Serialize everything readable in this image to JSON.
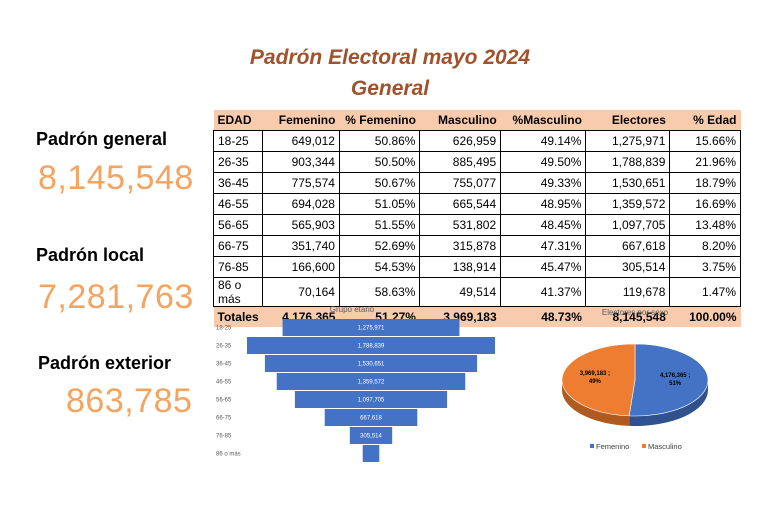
{
  "title_line1": "Padrón Electoral mayo 2024",
  "title_line2": "General",
  "stats": {
    "general_label": "Padrón general",
    "general_value": "8,145,548",
    "local_label": "Padrón local",
    "local_value": "7,281,763",
    "exterior_label": "Padrón exterior",
    "exterior_value": "863,785"
  },
  "table": {
    "headers": [
      "EDAD",
      "Femenino",
      "% Femenino",
      "Masculino",
      "%Masculino",
      "Electores",
      "% Edad"
    ],
    "rows": [
      [
        "18-25",
        "649,012",
        "50.86%",
        "626,959",
        "49.14%",
        "1,275,971",
        "15.66%"
      ],
      [
        "26-35",
        "903,344",
        "50.50%",
        "885,495",
        "49.50%",
        "1,788,839",
        "21.96%"
      ],
      [
        "36-45",
        "775,574",
        "50.67%",
        "755,077",
        "49.33%",
        "1,530,651",
        "18.79%"
      ],
      [
        "46-55",
        "694,028",
        "51.05%",
        "665,544",
        "48.95%",
        "1,359,572",
        "16.69%"
      ],
      [
        "56-65",
        "565,903",
        "51.55%",
        "531,802",
        "48.45%",
        "1,097,705",
        "13.48%"
      ],
      [
        "66-75",
        "351,740",
        "52.69%",
        "315,878",
        "47.31%",
        "667,618",
        "8.20%"
      ],
      [
        "76-85",
        "166,600",
        "54.53%",
        "138,914",
        "45.47%",
        "305,514",
        "3.75%"
      ],
      [
        "86 o más",
        "70,164",
        "58.63%",
        "49,514",
        "41.37%",
        "119,678",
        "1.47%"
      ]
    ],
    "totals": [
      "Totales",
      "4,176,365",
      "51.27%",
      "3,969,183",
      "48.73%",
      "8,145,548",
      "100.00%"
    ]
  },
  "chart_data": [
    {
      "type": "bar",
      "orientation": "horizontal-centered",
      "title": "Grupo etario",
      "categories": [
        "18-25",
        "26-35",
        "36-45",
        "46-55",
        "56-65",
        "66-75",
        "76-85",
        "86 o más"
      ],
      "values": [
        1275971,
        1788839,
        1530651,
        1359572,
        1097705,
        667618,
        305514,
        119678
      ],
      "data_labels": [
        "1,275,971",
        "1,788,839",
        "1,530,651",
        "1,359,572",
        "1,097,705",
        "667,618",
        "305,514",
        ""
      ],
      "color": "#4472c4"
    },
    {
      "type": "pie",
      "title": "Electores por sexo",
      "labels": [
        "Femenino",
        "Masculino"
      ],
      "values": [
        4176365,
        3969183
      ],
      "percents": [
        51,
        49
      ],
      "data_labels": [
        "4,176,365 ;\n51%",
        "3,969,183 ;\n49%"
      ],
      "colors": [
        "#4472c4",
        "#ed7d31"
      ],
      "legend_position": "bottom"
    }
  ]
}
